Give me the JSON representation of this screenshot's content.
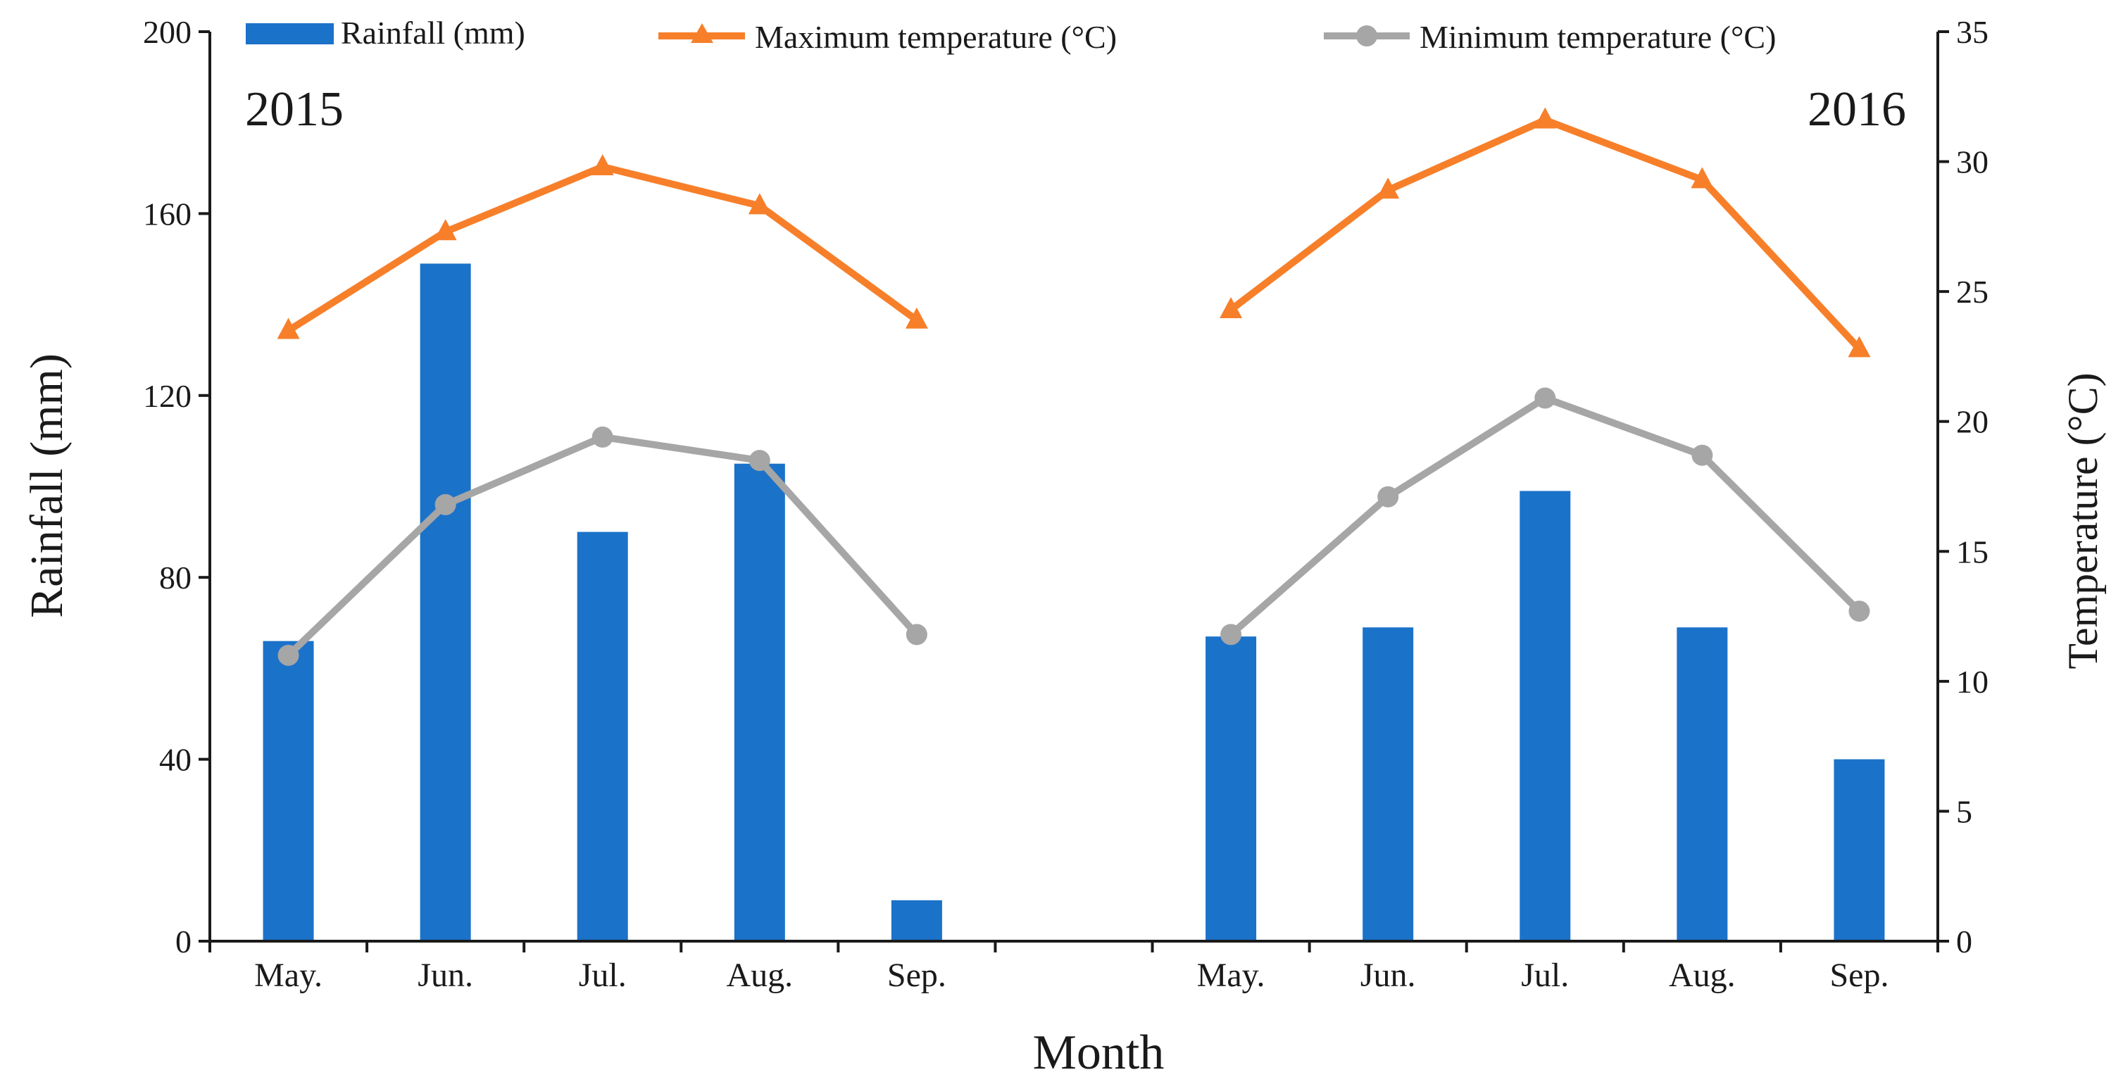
{
  "chart_data": {
    "type": "bar",
    "categories": [
      "May.",
      "Jun.",
      "Jul.",
      "Aug.",
      "Sep.",
      "",
      "May.",
      "Jun.",
      "Jul.",
      "Aug.",
      "Sep."
    ],
    "year_labels": [
      "2015",
      "2016"
    ],
    "xlabel": "Month",
    "ylabel_left": "Rainfall (mm)",
    "ylabel_right": "Temperature (°C)",
    "ylim_left": [
      0,
      200
    ],
    "yticks_left": [
      0,
      40,
      80,
      120,
      160,
      200
    ],
    "ylim_right": [
      0,
      35
    ],
    "yticks_right": [
      0,
      5,
      10,
      15,
      20,
      25,
      30,
      35
    ],
    "grid": false,
    "legend_position": "top",
    "legend": [
      "Rainfall (mm)",
      "Maximum temperature (°C)",
      "Minimum temperature (°C)"
    ],
    "series": [
      {
        "name": "Rainfall (mm)",
        "type": "bar",
        "axis": "left",
        "color": "#1b72c9",
        "values": [
          66,
          149,
          90,
          105,
          9,
          null,
          67,
          69,
          99,
          69,
          40
        ]
      },
      {
        "name": "Maximum temperature (°C)",
        "type": "line",
        "marker": "triangle",
        "axis": "right",
        "color": "#f77f2a",
        "values": [
          23.5,
          27.3,
          29.8,
          28.3,
          23.9,
          null,
          24.3,
          28.9,
          31.6,
          29.3,
          22.8
        ]
      },
      {
        "name": "Minimum temperature (°C)",
        "type": "line",
        "marker": "circle",
        "axis": "right",
        "color": "#a6a6a6",
        "values": [
          11.0,
          16.8,
          19.4,
          18.5,
          11.8,
          null,
          11.8,
          17.1,
          20.9,
          18.7,
          12.7
        ]
      }
    ]
  }
}
